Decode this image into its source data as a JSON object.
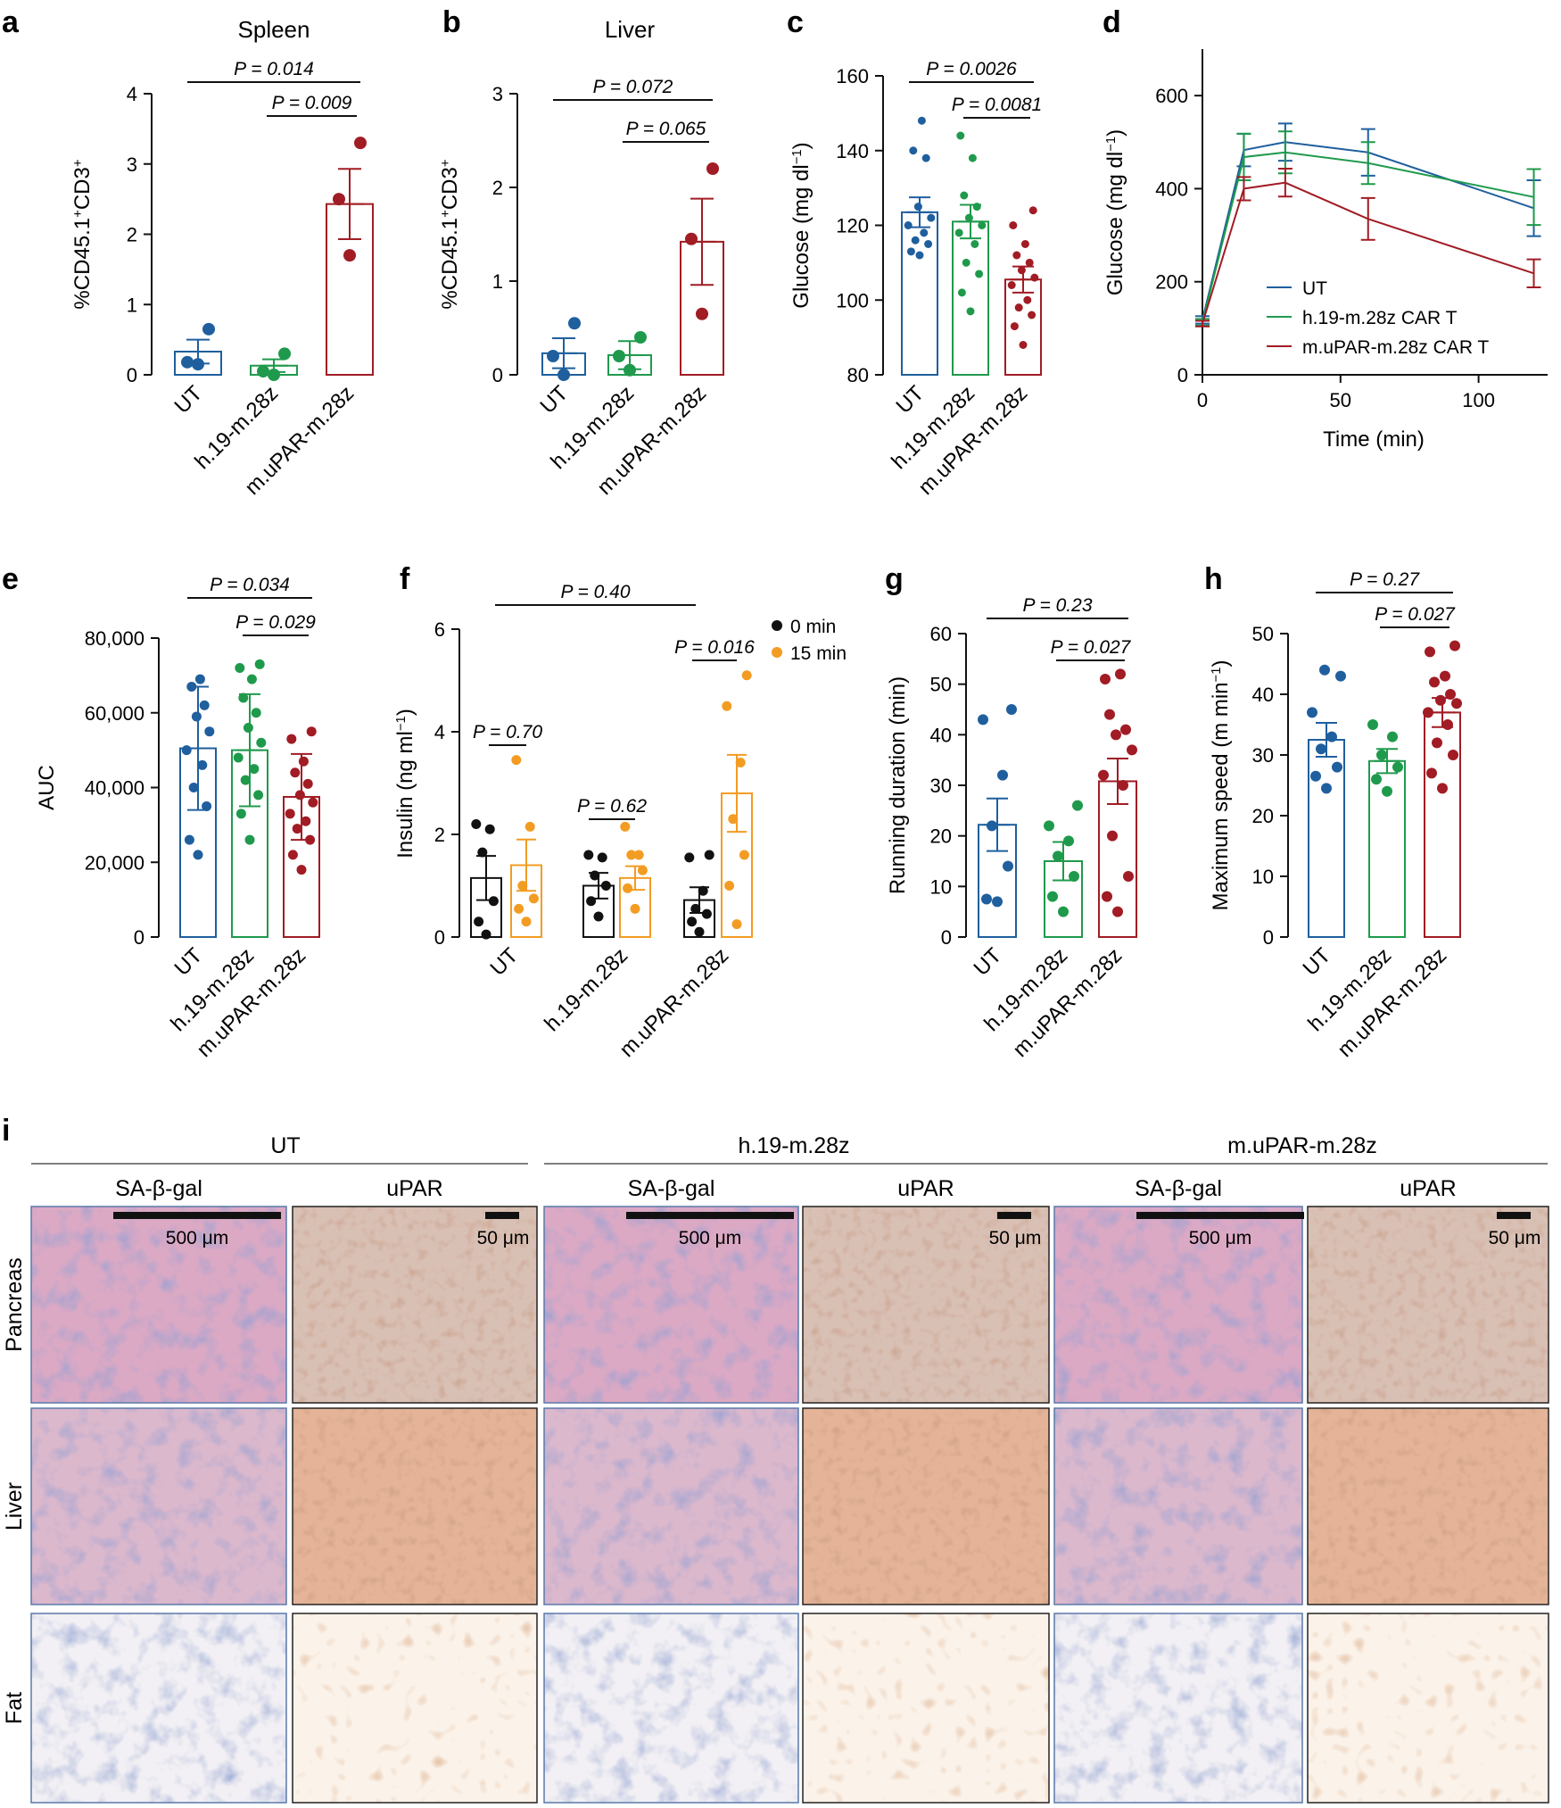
{
  "colors": {
    "ut": "#1f5f9e",
    "h19": "#1f9a4c",
    "upar": "#a11c24",
    "zero": "#111111",
    "fifteen": "#f39c23",
    "axis": "#111111"
  },
  "panel_letters": [
    "a",
    "b",
    "c",
    "d",
    "e",
    "f",
    "g",
    "h",
    "i"
  ],
  "chart_data": [
    {
      "id": "a",
      "type": "bar",
      "title": "Spleen",
      "ylabel": "%CD45.1+CD3+",
      "ylabel_parts": [
        "%CD45.1",
        "+",
        "CD3",
        "+"
      ],
      "categories": [
        "UT",
        "h.19-m.28z",
        "m.uPAR-m.28z"
      ],
      "yticks": [
        "0",
        "1",
        "2",
        "3",
        "4"
      ],
      "ylim": [
        0,
        4
      ],
      "values": [
        0.33,
        0.13,
        2.43
      ],
      "errors": [
        0.17,
        0.09,
        0.5
      ],
      "points": [
        [
          0.15,
          0.18,
          0.65
        ],
        [
          0.0,
          0.05,
          0.3
        ],
        [
          1.7,
          2.5,
          3.3
        ]
      ],
      "pvalues": [
        {
          "text": "P = 0.014",
          "from": 0,
          "to": 2
        },
        {
          "text": "P = 0.009",
          "from": 1,
          "to": 2
        }
      ]
    },
    {
      "id": "b",
      "type": "bar",
      "title": "Liver",
      "ylabel": "%CD45.1+CD3+",
      "ylabel_parts": [
        "%CD45.1",
        "+",
        "CD3",
        "+"
      ],
      "categories": [
        "UT",
        "h.19-m.28z",
        "m.uPAR-m.28z"
      ],
      "yticks": [
        "0",
        "1",
        "2",
        "3"
      ],
      "ylim": [
        0,
        3
      ],
      "values": [
        0.23,
        0.21,
        1.42
      ],
      "errors": [
        0.16,
        0.15,
        0.46
      ],
      "points": [
        [
          0.0,
          0.2,
          0.55
        ],
        [
          0.05,
          0.2,
          0.4
        ],
        [
          0.65,
          1.45,
          2.2
        ]
      ],
      "pvalues": [
        {
          "text": "P = 0.072",
          "from": 0,
          "to": 2
        },
        {
          "text": "P = 0.065",
          "from": 1,
          "to": 2
        }
      ]
    },
    {
      "id": "c",
      "type": "bar",
      "title": "",
      "ylabel": "Glucose (mg dl−1)",
      "ylabel_parts": [
        "Glucose (mg dl",
        "−1",
        ")"
      ],
      "categories": [
        "UT",
        "h.19-m.28z",
        "m.uPAR-m.28z"
      ],
      "yticks": [
        "80",
        "100",
        "120",
        "140",
        "160"
      ],
      "ylim": [
        80,
        160
      ],
      "values": [
        123.5,
        121,
        105.5
      ],
      "errors": [
        4,
        4.5,
        3.5
      ],
      "points": [
        [
          112,
          113,
          115,
          116,
          118,
          120,
          122,
          125,
          138,
          140,
          148
        ],
        [
          97,
          102,
          107,
          110,
          115,
          118,
          120,
          122,
          125,
          128,
          138,
          144
        ],
        [
          88,
          93,
          96,
          98,
          100,
          104,
          106,
          108,
          110,
          112,
          115,
          120,
          124
        ]
      ],
      "pvalues": [
        {
          "text": "P = 0.0026",
          "from": 0,
          "to": 2
        },
        {
          "text": "P = 0.0081",
          "from": 1,
          "to": 2
        }
      ]
    },
    {
      "id": "d",
      "type": "line",
      "title": "",
      "ylabel": "Glucose (mg dl−1)",
      "ylabel_parts": [
        "Glucose (mg dl",
        "−1",
        ")"
      ],
      "xlabel": "Time (min)",
      "x": [
        0,
        15,
        30,
        60,
        120
      ],
      "xlim": [
        0,
        125
      ],
      "xticks": [
        "0",
        "50",
        "100"
      ],
      "yticks": [
        "0",
        "200",
        "400",
        "600"
      ],
      "ylim": [
        0,
        700
      ],
      "series": [
        {
          "name": "UT",
          "values": [
            118,
            483,
            500,
            478,
            358
          ],
          "errors": [
            8,
            35,
            40,
            50,
            60
          ]
        },
        {
          "name": "h.19-m.28z CAR T",
          "values": [
            113,
            468,
            478,
            455,
            382
          ],
          "errors": [
            7,
            50,
            45,
            45,
            60
          ]
        },
        {
          "name": "m.uPAR-m.28z CAR T",
          "values": [
            110,
            400,
            413,
            335,
            218
          ],
          "errors": [
            6,
            25,
            30,
            45,
            30
          ]
        }
      ]
    },
    {
      "id": "e",
      "type": "bar",
      "title": "",
      "ylabel": "AUC",
      "categories": [
        "UT",
        "h.19-m.28z",
        "m.uPAR-m.28z"
      ],
      "yticks": [
        "0",
        "20,000",
        "40,000",
        "60,000",
        "80,000"
      ],
      "ylim": [
        0,
        80000
      ],
      "values": [
        50500,
        50000,
        37500
      ],
      "errors": [
        16500,
        15000,
        11500
      ],
      "points": [
        [
          22000,
          26000,
          35000,
          40000,
          46000,
          50000,
          55000,
          59000,
          62000,
          67000,
          69000
        ],
        [
          26000,
          33000,
          38000,
          42000,
          45000,
          48000,
          52000,
          56000,
          60000,
          64000,
          69000,
          72000,
          73000
        ],
        [
          18000,
          22000,
          26000,
          29000,
          31000,
          33000,
          36000,
          38000,
          41000,
          44000,
          47000,
          53000,
          55000
        ]
      ],
      "pvalues": [
        {
          "text": "P = 0.034",
          "from": 0,
          "to": 2
        },
        {
          "text": "P = 0.029",
          "from": 1,
          "to": 2
        }
      ]
    },
    {
      "id": "f",
      "type": "bar",
      "title": "",
      "ylabel": "Insulin (ng ml−1)",
      "ylabel_parts": [
        "Insulin (ng ml",
        "−1",
        ")"
      ],
      "categories": [
        "UT",
        "h.19-m.28z",
        "m.uPAR-m.28z"
      ],
      "yticks": [
        "0",
        "2",
        "4",
        "6"
      ],
      "ylim": [
        0,
        6
      ],
      "legend": [
        "0 min",
        "15 min"
      ],
      "series": [
        {
          "name": "0 min",
          "values": [
            1.15,
            1.0,
            0.72
          ],
          "errors": [
            0.43,
            0.25,
            0.25
          ],
          "points": [
            [
              0.05,
              0.3,
              0.7,
              1.65,
              2.1,
              2.2
            ],
            [
              0.4,
              0.7,
              1.0,
              1.2,
              1.55,
              1.6
            ],
            [
              0.1,
              0.3,
              0.45,
              0.55,
              0.9,
              1.55,
              1.6
            ]
          ]
        },
        {
          "name": "15 min",
          "values": [
            1.4,
            1.15,
            2.8
          ],
          "errors": [
            0.5,
            0.23,
            0.75
          ],
          "points": [
            [
              0.3,
              0.55,
              0.75,
              1.0,
              2.15,
              3.45
            ],
            [
              0.55,
              0.95,
              1.3,
              1.6,
              1.6,
              2.15
            ],
            [
              0.25,
              1.0,
              1.6,
              2.3,
              3.4,
              4.5,
              5.1
            ]
          ]
        }
      ],
      "pvalues": [
        {
          "text": "P = 0.40",
          "from": 0,
          "to": 2
        },
        {
          "text": "P = 0.70",
          "group": 0
        },
        {
          "text": "P = 0.62",
          "group": 1
        },
        {
          "text": "P = 0.016",
          "group": 2
        }
      ]
    },
    {
      "id": "g",
      "type": "bar",
      "title": "",
      "ylabel": "Running duration (min)",
      "categories": [
        "UT",
        "h.19-m.28z",
        "m.uPAR-m.28z"
      ],
      "yticks": [
        "0",
        "10",
        "20",
        "30",
        "40",
        "50",
        "60"
      ],
      "ylim": [
        0,
        60
      ],
      "values": [
        22.2,
        15,
        30.8
      ],
      "errors": [
        5.2,
        3.8,
        4.5
      ],
      "points": [
        [
          7,
          7.5,
          14,
          22,
          32,
          43,
          45
        ],
        [
          5,
          8,
          12,
          16,
          19,
          22,
          26
        ],
        [
          5,
          8,
          12,
          20,
          30,
          32,
          37,
          40,
          41,
          44,
          52,
          51
        ]
      ],
      "pvalues": [
        {
          "text": "P = 0.23",
          "from": 0,
          "to": 2
        },
        {
          "text": "P = 0.027",
          "from": 1,
          "to": 2
        }
      ]
    },
    {
      "id": "h",
      "type": "bar",
      "title": "",
      "ylabel": "Maximum speed (m min−1)",
      "ylabel_parts": [
        "Maximum speed (m min",
        "−1",
        ")"
      ],
      "categories": [
        "UT",
        "h.19-m.28z",
        "m.uPAR-m.28z"
      ],
      "yticks": [
        "0",
        "10",
        "20",
        "30",
        "40",
        "50"
      ],
      "ylim": [
        0,
        50
      ],
      "values": [
        32.5,
        29,
        37
      ],
      "errors": [
        2.8,
        2,
        2.4
      ],
      "points": [
        [
          24.5,
          26.5,
          28,
          31,
          33,
          37,
          43,
          44
        ],
        [
          24,
          26,
          28,
          30,
          33,
          35
        ],
        [
          24.5,
          27,
          30,
          32,
          35,
          37,
          38.5,
          39,
          40,
          42,
          43,
          47,
          48
        ]
      ],
      "pvalues": [
        {
          "text": "P = 0.27",
          "from": 0,
          "to": 2
        },
        {
          "text": "P = 0.027",
          "from": 1,
          "to": 2
        }
      ]
    }
  ],
  "histology": {
    "groups": [
      "UT",
      "h.19-m.28z",
      "m.uPAR-m.28z"
    ],
    "stains": [
      "SA-β-gal",
      "uPAR"
    ],
    "tissues": [
      "Pancreas",
      "Liver",
      "Fat"
    ],
    "scale_bars": [
      "500 μm",
      "50 μm"
    ]
  }
}
